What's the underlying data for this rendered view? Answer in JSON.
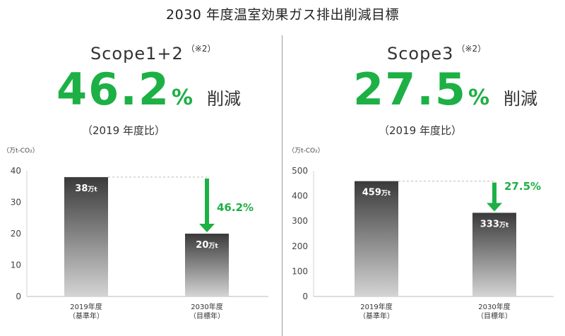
{
  "title": "2030 年度温室効果ガス排出削減目標",
  "colors": {
    "green": "#1db045",
    "bar_top": "#3a3a3a",
    "bar_bottom": "#d4d4d4"
  },
  "panels": [
    {
      "scope": "Scope1+2",
      "note": "（※2）",
      "reduction_value": "46.2",
      "reduction_unit": "%",
      "reduction_word": "削減",
      "baseline_note": "（2019 年度比）",
      "unit_label": "（万t-CO₂）"
    },
    {
      "scope": "Scope3",
      "note": "（※2）",
      "reduction_value": "27.5",
      "reduction_unit": "%",
      "reduction_word": "削減",
      "baseline_note": "（2019 年度比）",
      "unit_label": "（万t-CO₂）"
    }
  ],
  "chart_data": [
    {
      "type": "bar",
      "categories": [
        [
          "2019年度",
          "（基準年）"
        ],
        [
          "2030年度",
          "（目標年）"
        ]
      ],
      "values": [
        38,
        20
      ],
      "value_labels": [
        "38",
        "20"
      ],
      "value_suffix": "万t",
      "ylim": [
        0,
        40
      ],
      "yticks": [
        0,
        10,
        20,
        30,
        40
      ],
      "reduction_label": "46.2%",
      "ylabel": "（万t-CO₂）"
    },
    {
      "type": "bar",
      "categories": [
        [
          "2019年度",
          "（基準年）"
        ],
        [
          "2030年度",
          "（目標年）"
        ]
      ],
      "values": [
        459,
        333
      ],
      "value_labels": [
        "459",
        "333"
      ],
      "value_suffix": "万t",
      "ylim": [
        0,
        500
      ],
      "yticks": [
        0,
        100,
        200,
        300,
        400,
        500
      ],
      "reduction_label": "27.5%",
      "ylabel": "（万t-CO₂）"
    }
  ]
}
